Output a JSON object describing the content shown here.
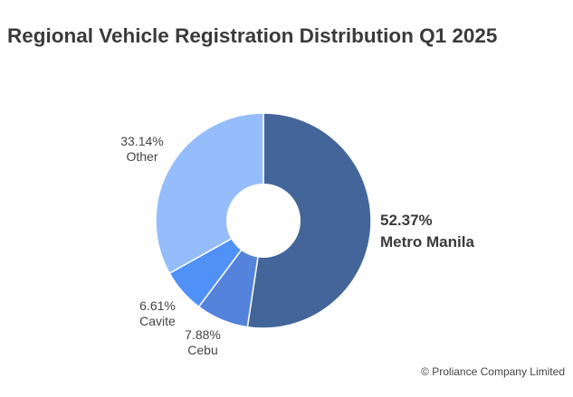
{
  "chart_data": {
    "type": "pie",
    "title": "Regional Vehicle Registration Distribution Q1 2025",
    "donut": true,
    "slices": [
      {
        "label": "Metro Manila",
        "value": 52.37,
        "value_label": "52.37%",
        "color": "#43659a",
        "emphasis": true
      },
      {
        "label": "Cebu",
        "value": 7.88,
        "value_label": "7.88%",
        "color": "#5483db",
        "emphasis": false
      },
      {
        "label": "Cavite",
        "value": 6.61,
        "value_label": "6.61%",
        "color": "#4f91f7",
        "emphasis": false
      },
      {
        "label": "Other",
        "value": 33.14,
        "value_label": "33.14%",
        "color": "#95bcfb",
        "emphasis": false
      }
    ],
    "start_position": "12 o'clock",
    "direction": "clockwise"
  },
  "footer": {
    "copyright": "© Proliance Company Limited"
  }
}
